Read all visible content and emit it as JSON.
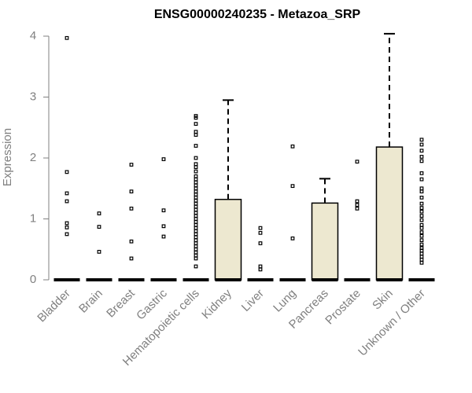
{
  "chart_data": {
    "type": "boxplot",
    "title": "ENSG00000240235 - Metazoa_SRP",
    "ylabel": "Expression",
    "xlabel": "",
    "ylim": [
      0,
      4
    ],
    "yticks": [
      "0",
      "1",
      "2",
      "3",
      "4"
    ],
    "grid": false,
    "colors": {
      "box_fill": "#ede8d0",
      "stroke": "#000000",
      "axis": "#808080"
    },
    "categories": [
      "Bladder",
      "Brain",
      "Breast",
      "Gastric",
      "Hematopoietic cells",
      "Kidney",
      "Liver",
      "Lung",
      "Pancreas",
      "Prostate",
      "Skin",
      "Unknown / Other"
    ],
    "series": [
      {
        "category": "Bladder",
        "q1": 0,
        "median": 0,
        "q3": 0,
        "whisker_low": 0,
        "whisker_high": 0,
        "outliers": [
          3.97,
          1.77,
          1.42,
          1.29,
          0.93,
          0.86,
          0.75
        ]
      },
      {
        "category": "Brain",
        "q1": 0,
        "median": 0,
        "q3": 0,
        "whisker_low": 0,
        "whisker_high": 0,
        "outliers": [
          1.09,
          0.87,
          0.46
        ]
      },
      {
        "category": "Breast",
        "q1": 0,
        "median": 0,
        "q3": 0,
        "whisker_low": 0,
        "whisker_high": 0,
        "outliers": [
          1.89,
          1.45,
          1.17,
          0.63,
          0.35
        ]
      },
      {
        "category": "Gastric",
        "q1": 0,
        "median": 0,
        "q3": 0,
        "whisker_low": 0,
        "whisker_high": 0,
        "outliers": [
          1.98,
          1.14,
          0.88,
          0.71
        ]
      },
      {
        "category": "Hematopoietic cells",
        "q1": 0,
        "median": 0,
        "q3": 0,
        "whisker_low": 0,
        "whisker_high": 0,
        "outliers": [
          2.69,
          2.66,
          2.56,
          2.43,
          2.38,
          2.2,
          2.0,
          1.9,
          1.85,
          1.78,
          1.7,
          1.65,
          1.6,
          1.55,
          1.5,
          1.45,
          1.4,
          1.35,
          1.3,
          1.25,
          1.2,
          1.15,
          1.1,
          1.05,
          1.0,
          0.95,
          0.9,
          0.85,
          0.8,
          0.75,
          0.7,
          0.65,
          0.6,
          0.55,
          0.5,
          0.45,
          0.4,
          0.35,
          0.22
        ]
      },
      {
        "category": "Kidney",
        "q1": 0,
        "median": 0,
        "q3": 1.32,
        "whisker_low": 0,
        "whisker_high": 2.95,
        "outliers": []
      },
      {
        "category": "Liver",
        "q1": 0,
        "median": 0,
        "q3": 0,
        "whisker_low": 0,
        "whisker_high": 0,
        "outliers": [
          0.85,
          0.77,
          0.6,
          0.22,
          0.17
        ]
      },
      {
        "category": "Lung",
        "q1": 0,
        "median": 0,
        "q3": 0,
        "whisker_low": 0,
        "whisker_high": 0,
        "outliers": [
          2.19,
          1.54,
          0.68
        ]
      },
      {
        "category": "Pancreas",
        "q1": 0,
        "median": 0,
        "q3": 1.26,
        "whisker_low": 0,
        "whisker_high": 1.66,
        "outliers": []
      },
      {
        "category": "Prostate",
        "q1": 0,
        "median": 0,
        "q3": 0,
        "whisker_low": 0,
        "whisker_high": 0,
        "outliers": [
          1.94,
          1.29,
          1.23,
          1.17
        ]
      },
      {
        "category": "Skin",
        "q1": 0,
        "median": 0,
        "q3": 2.18,
        "whisker_low": 0,
        "whisker_high": 4.04,
        "outliers": []
      },
      {
        "category": "Unknown / Other",
        "q1": 0,
        "median": 0,
        "q3": 0,
        "whisker_low": 0,
        "whisker_high": 0,
        "outliers": [
          2.3,
          2.22,
          2.12,
          2.02,
          1.95,
          1.75,
          1.65,
          1.5,
          1.45,
          1.35,
          1.25,
          1.18,
          1.12,
          1.05,
          0.98,
          0.9,
          0.85,
          0.78,
          0.72,
          0.65,
          0.58,
          0.52,
          0.48,
          0.43,
          0.38,
          0.33,
          0.28
        ]
      }
    ]
  }
}
